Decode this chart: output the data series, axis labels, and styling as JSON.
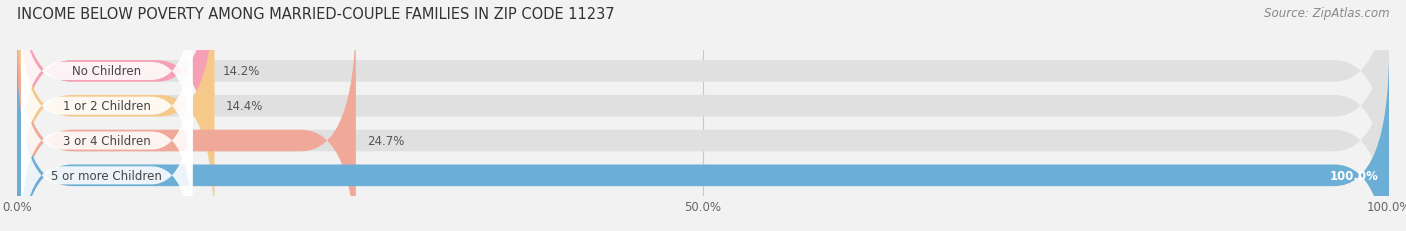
{
  "title": "INCOME BELOW POVERTY AMONG MARRIED-COUPLE FAMILIES IN ZIP CODE 11237",
  "source": "Source: ZipAtlas.com",
  "categories": [
    "No Children",
    "1 or 2 Children",
    "3 or 4 Children",
    "5 or more Children"
  ],
  "values": [
    14.2,
    14.4,
    24.7,
    100.0
  ],
  "bar_colors": [
    "#f5a0b5",
    "#f5c98a",
    "#f0a898",
    "#6baed6"
  ],
  "label_colors": [
    "#555555",
    "#555555",
    "#555555",
    "#ffffff"
  ],
  "bg_color": "#f2f2f2",
  "bar_bg_color": "#e0e0e0",
  "xlim": [
    0,
    100
  ],
  "xticks": [
    0,
    50,
    100
  ],
  "xtick_labels": [
    "0.0%",
    "50.0%",
    "100.0%"
  ],
  "title_fontsize": 10.5,
  "source_fontsize": 8.5,
  "bar_label_fontsize": 8.5,
  "category_fontsize": 8.5,
  "value_labels": [
    "14.2%",
    "14.4%",
    "24.7%",
    "100.0%"
  ]
}
